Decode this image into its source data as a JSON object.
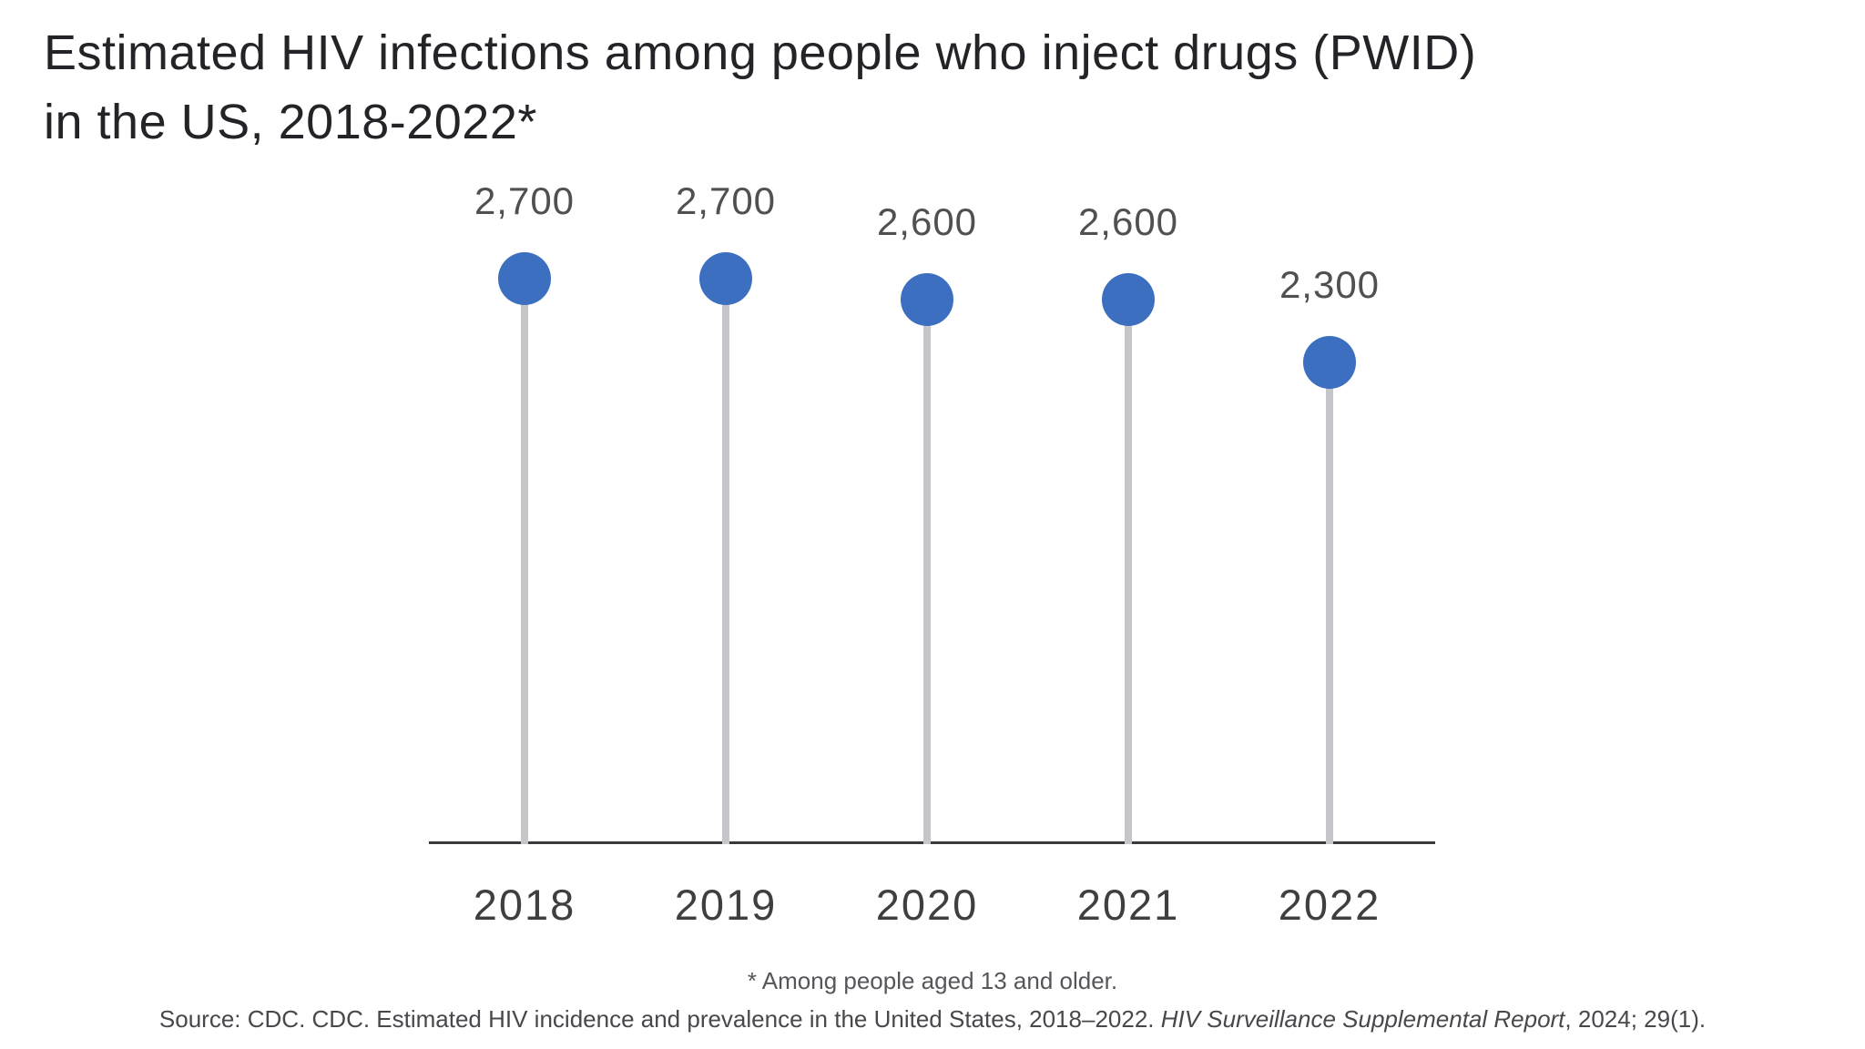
{
  "header": {
    "title_lines": [
      "Estimated HIV infections among people who inject drugs (PWID)",
      "in the US, 2018-2022*"
    ]
  },
  "chart_data": {
    "type": "bar",
    "variant": "lollipop",
    "title": "Estimated HIV infections among people who inject drugs (PWID) in the US, 2018-2022*",
    "categories": [
      "2018",
      "2019",
      "2020",
      "2021",
      "2022"
    ],
    "values": [
      2700,
      2700,
      2600,
      2600,
      2300
    ],
    "value_labels": [
      "2,700",
      "2,700",
      "2,600",
      "2,600",
      "2,300"
    ],
    "xlabel": "",
    "ylabel": "",
    "ylim": [
      0,
      2900
    ],
    "grid": false,
    "legend": false,
    "colors": {
      "dot": "#3c6fc0",
      "stem": "#c6c6ca",
      "axis": "#3a3a3c",
      "value_label": "#505053",
      "tick_label": "#3e3f41",
      "title": "#232428",
      "footnote": "#55565a"
    }
  },
  "notes": {
    "footnote": "* Among people aged 13 and older.",
    "source_segments": [
      {
        "text": "Source: CDC. CDC. Estimated HIV incidence and prevalence in the United States, 2018–2022. ",
        "italic": false
      },
      {
        "text": "HIV Surveillance Supplemental Report",
        "italic": true
      },
      {
        "text": ", 2024; 29(1).",
        "italic": false
      }
    ]
  }
}
